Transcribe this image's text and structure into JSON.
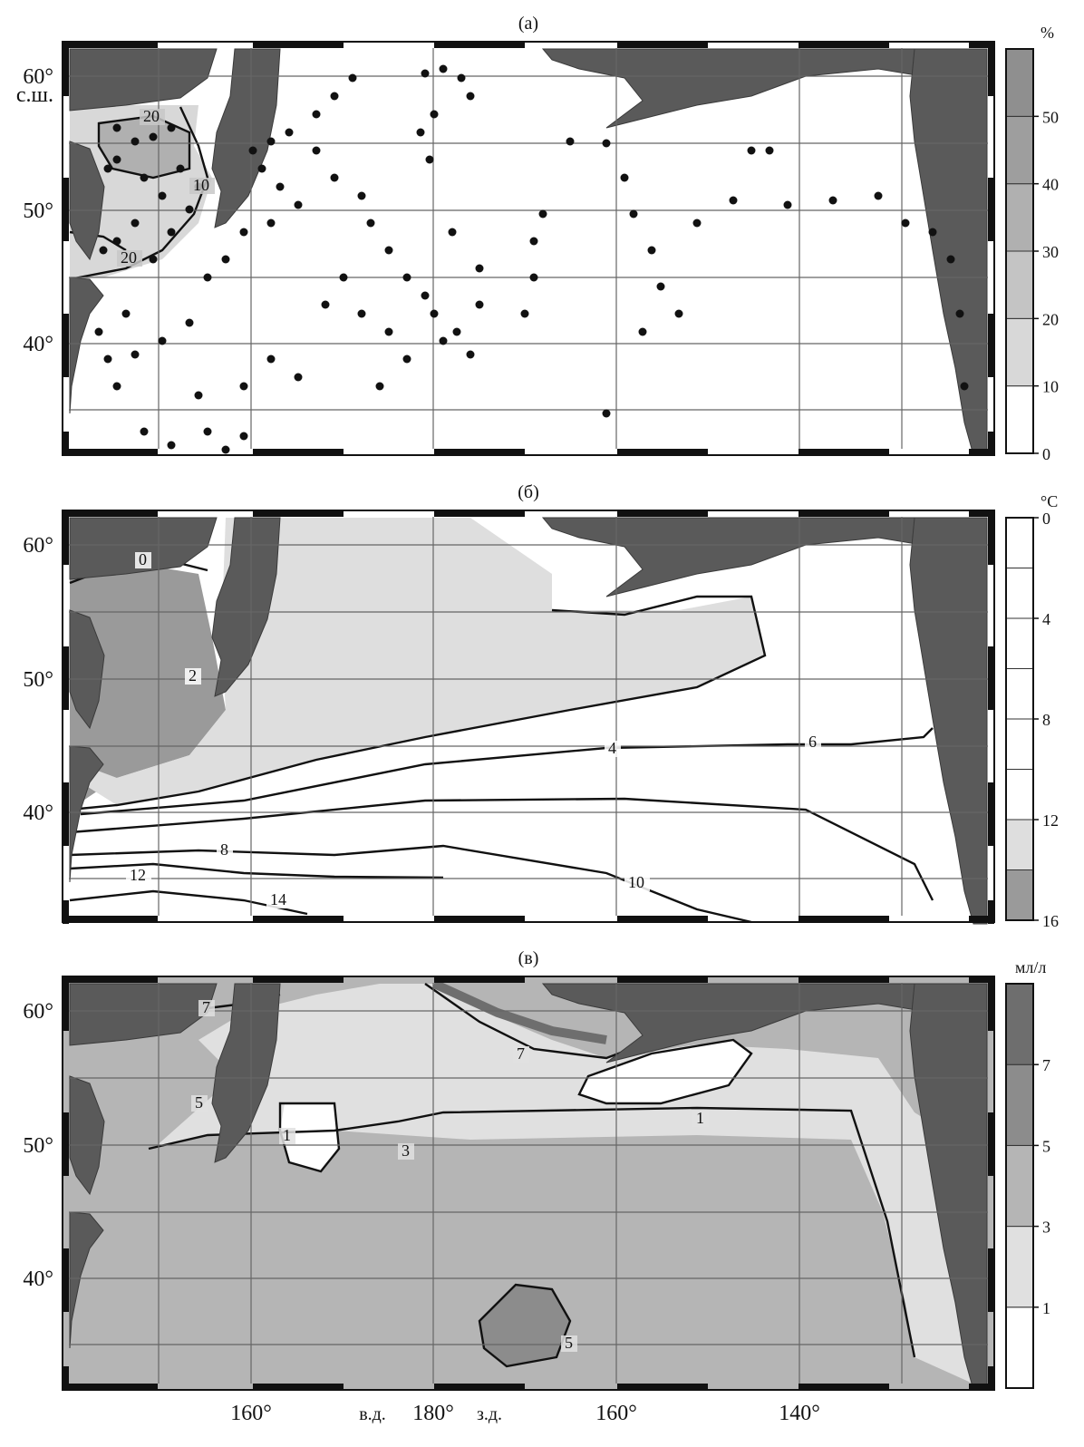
{
  "panels": [
    {
      "id": "a",
      "label": "(а)",
      "unit": "%",
      "legend_ticks": [
        "0",
        "10",
        "20",
        "30",
        "40",
        "50"
      ],
      "legend_colors": [
        "#ffffff",
        "#d8d8d8",
        "#c4c4c4",
        "#b0b0b0",
        "#9e9e9e",
        "#8f8f8f"
      ],
      "contour_labels": [
        "20",
        "10",
        "20"
      ],
      "lat_labels": [
        "60°",
        "с.ш.",
        "50°",
        "40°"
      ]
    },
    {
      "id": "b",
      "label": "(б)",
      "unit": "°C",
      "legend_ticks": [
        "0",
        "4",
        "8",
        "12",
        "16"
      ],
      "legend_colors": [
        "#9a9a9a",
        "#dedede",
        "#ffffff",
        "#ffffff",
        "#ffffff",
        "#ffffff",
        "#ffffff",
        "#ffffff"
      ],
      "contour_labels": [
        "0",
        "2",
        "4",
        "6",
        "8",
        "12",
        "14",
        "10"
      ],
      "lat_labels": [
        "60°",
        "50°",
        "40°"
      ]
    },
    {
      "id": "c",
      "label": "(в)",
      "unit": "мл/л",
      "legend_ticks": [
        "1",
        "3",
        "5",
        "7"
      ],
      "legend_colors": [
        "#ffffff",
        "#e0e0e0",
        "#b5b5b5",
        "#8c8c8c",
        "#6e6e6e"
      ],
      "contour_labels": [
        "7",
        "7",
        "5",
        "1",
        "1",
        "3",
        "5"
      ],
      "lat_labels": [
        "60°",
        "50°",
        "40°"
      ]
    }
  ],
  "lon_labels": [
    "160°",
    "в.д.",
    "180°",
    "з.д.",
    "160°",
    "140°"
  ],
  "station_count_note": "",
  "colors": {
    "land": "#5a5a5a",
    "grid": "#666666",
    "isoline": "#111111"
  }
}
